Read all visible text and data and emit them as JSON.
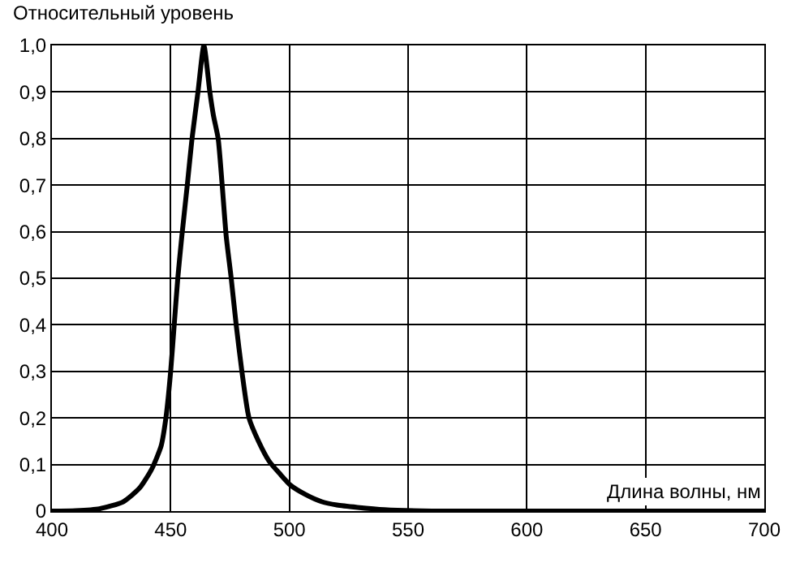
{
  "chart_data": {
    "type": "line",
    "ylabel": "Относительный уровень",
    "xlabel": "Длина волны, нм",
    "x": [
      400,
      410,
      420,
      430,
      437,
      442,
      446,
      448,
      450,
      451.5,
      453,
      454.7,
      457,
      459,
      461.5,
      464,
      466.5,
      468,
      470,
      471.7,
      473.4,
      475.5,
      477.6,
      480,
      483,
      487,
      491.5,
      496,
      500.6,
      507,
      513.7,
      520,
      528.7,
      540,
      560,
      600,
      650,
      700
    ],
    "series": [
      {
        "color": "#000000",
        "values": [
          0,
          0.001,
          0.005,
          0.02,
          0.05,
          0.09,
          0.14,
          0.2,
          0.3,
          0.4,
          0.5,
          0.59,
          0.7,
          0.8,
          0.9,
          1.0,
          0.9,
          0.85,
          0.8,
          0.7,
          0.59,
          0.5,
          0.4,
          0.3,
          0.2,
          0.15,
          0.107,
          0.08,
          0.055,
          0.035,
          0.02,
          0.013,
          0.008,
          0.003,
          0,
          0,
          0,
          0
        ]
      }
    ],
    "xlim": [
      400,
      700
    ],
    "xticks": [
      400,
      450,
      500,
      550,
      600,
      650,
      700
    ],
    "ylim": [
      0,
      1.0
    ],
    "yticks": [
      {
        "value": 0,
        "label": "0"
      },
      {
        "value": 0.1,
        "label": "0,1"
      },
      {
        "value": 0.2,
        "label": "0,2"
      },
      {
        "value": 0.3,
        "label": "0,3"
      },
      {
        "value": 0.4,
        "label": "0,4"
      },
      {
        "value": 0.5,
        "label": "0,5"
      },
      {
        "value": 0.6,
        "label": "0,6"
      },
      {
        "value": 0.7,
        "label": "0,7"
      },
      {
        "value": 0.8,
        "label": "0,8"
      },
      {
        "value": 0.9,
        "label": "0,9"
      },
      {
        "value": 1.0,
        "label": "1,0"
      }
    ],
    "grid": true,
    "legend": false,
    "marker": "none",
    "line_style": "solid"
  }
}
